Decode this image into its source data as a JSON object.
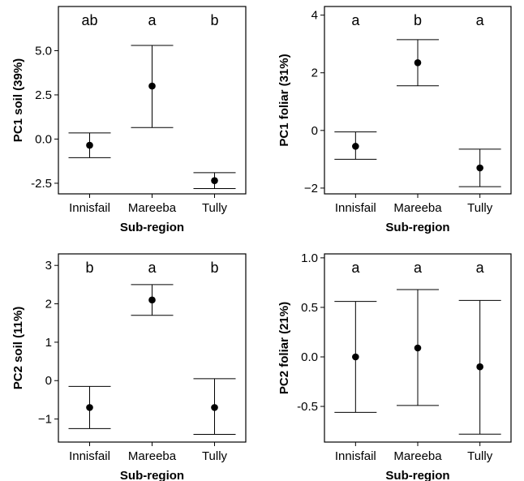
{
  "chart_data": [
    {
      "type": "scatter",
      "subtype": "point-with-error-bars",
      "xlabel": "Sub-region",
      "ylabel": "PC1 soil (39%)",
      "categories": [
        "Innisfail",
        "Mareeba",
        "Tully"
      ],
      "values": [
        -0.35,
        3.0,
        -2.35
      ],
      "lower": [
        -1.05,
        0.65,
        -2.8
      ],
      "upper": [
        0.35,
        5.3,
        -1.9
      ],
      "letters": [
        "ab",
        "a",
        "b"
      ],
      "yticks": [
        -2.5,
        0.0,
        2.5,
        5.0
      ],
      "ytick_labels": [
        "-2.5",
        "0.0",
        "2.5",
        "5.0"
      ],
      "ylim": [
        -3.1,
        7.5
      ],
      "grid": false
    },
    {
      "type": "scatter",
      "subtype": "point-with-error-bars",
      "xlabel": "Sub-region",
      "ylabel": "PC1 foliar (31%)",
      "categories": [
        "Innisfail",
        "Mareeba",
        "Tully"
      ],
      "values": [
        -0.55,
        2.35,
        -1.3
      ],
      "lower": [
        -1.0,
        1.55,
        -1.95
      ],
      "upper": [
        -0.05,
        3.15,
        -0.65
      ],
      "letters": [
        "a",
        "b",
        "a"
      ],
      "yticks": [
        -2,
        0,
        2,
        4
      ],
      "ytick_labels": [
        "−2",
        "0",
        "2",
        "4"
      ],
      "ylim": [
        -2.2,
        4.3
      ],
      "grid": false
    },
    {
      "type": "scatter",
      "subtype": "point-with-error-bars",
      "xlabel": "Sub-region",
      "ylabel": "PC2 soil (11%)",
      "categories": [
        "Innisfail",
        "Mareeba",
        "Tully"
      ],
      "values": [
        -0.7,
        2.1,
        -0.7
      ],
      "lower": [
        -1.25,
        1.7,
        -1.4
      ],
      "upper": [
        -0.15,
        2.5,
        0.05
      ],
      "letters": [
        "b",
        "a",
        "b"
      ],
      "yticks": [
        -1,
        0,
        1,
        2,
        3
      ],
      "ytick_labels": [
        "−1",
        "0",
        "1",
        "2",
        "3"
      ],
      "ylim": [
        -1.6,
        3.3
      ],
      "grid": false
    },
    {
      "type": "scatter",
      "subtype": "point-with-error-bars",
      "xlabel": "Sub-region",
      "ylabel": "PC2 foliar (21%)",
      "categories": [
        "Innisfail",
        "Mareeba",
        "Tully"
      ],
      "values": [
        0.0,
        0.09,
        -0.1
      ],
      "lower": [
        -0.56,
        -0.49,
        -0.78
      ],
      "upper": [
        0.56,
        0.68,
        0.57
      ],
      "letters": [
        "a",
        "a",
        "a"
      ],
      "yticks": [
        -0.5,
        0.0,
        0.5,
        1.0
      ],
      "ytick_labels": [
        "-0.5",
        "0.0",
        "0.5",
        "1.0"
      ],
      "ylim": [
        -0.86,
        1.04
      ],
      "grid": false
    }
  ]
}
